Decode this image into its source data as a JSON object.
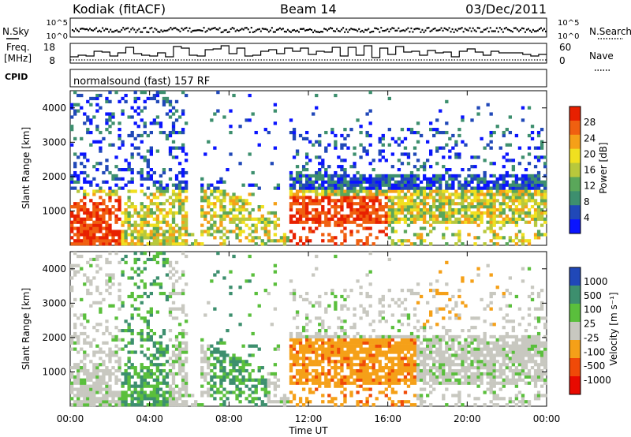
{
  "header": {
    "station": "Kodiak (fitACF)",
    "beam": "Beam 14",
    "date": "03/Dec/2011",
    "cpid_label": "CPID",
    "cpid_text": "normalsound (fast) 157 RF"
  },
  "noise_panel": {
    "left_label": "N.Sky",
    "right_label": "N.Search",
    "ticks_left": [
      "10^5",
      "10^0"
    ],
    "ticks_right": [
      "10^5",
      "10^0"
    ]
  },
  "freq_panel": {
    "left_label_1": "Freq.",
    "left_label_2": "[MHz]",
    "right_label": "Nave",
    "ticks_left": [
      "18",
      "8"
    ],
    "ticks_right": [
      "60",
      "0"
    ]
  },
  "colors": {
    "power_scale": [
      "#0a14ff",
      "#2048b8",
      "#3d8f6e",
      "#5aa75a",
      "#b8c83c",
      "#f0e020",
      "#f5a018",
      "#f06010",
      "#e82000"
    ],
    "velocity_scale": [
      "#e80a00",
      "#f04a08",
      "#f5a018",
      "#c8c8c0",
      "#5abf3c",
      "#3d8f6e",
      "#2048b8"
    ]
  },
  "chart_data": [
    {
      "type": "heatmap",
      "name": "power",
      "ylabel": "Slant Range [km]",
      "ylim": [
        0,
        4500
      ],
      "yticks": [
        "1000",
        "2000",
        "3000",
        "4000"
      ],
      "xlabel": "Time UT",
      "xticks": [
        "00:00",
        "04:00",
        "08:00",
        "12:00",
        "16:00",
        "20:00",
        "00:00"
      ],
      "colorbar_label": "Power [dB]",
      "colorbar_ticks": [
        "4",
        "8",
        "12",
        "16",
        "20",
        "24",
        "28"
      ],
      "clim": [
        0,
        30
      ]
    },
    {
      "type": "heatmap",
      "name": "velocity",
      "ylabel": "Slant Range [km]",
      "ylim": [
        0,
        4500
      ],
      "yticks": [
        "1000",
        "2000",
        "3000",
        "4000"
      ],
      "xlabel": "Time UT",
      "xticks": [
        "00:00",
        "04:00",
        "08:00",
        "12:00",
        "16:00",
        "20:00",
        "00:00"
      ],
      "colorbar_label": "Velocity [m s⁻¹]",
      "colorbar_ticks": [
        "1000",
        "500",
        "100",
        "25",
        "-25",
        "-100",
        "-500",
        "-1000"
      ],
      "clim": [
        -1000,
        1000
      ]
    }
  ]
}
